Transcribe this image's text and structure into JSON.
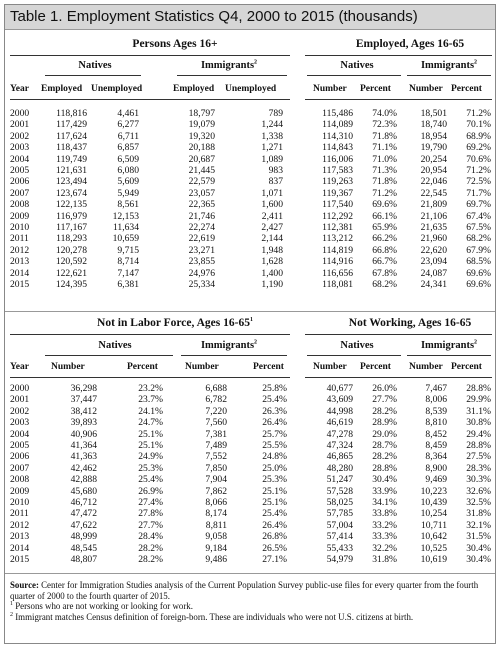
{
  "title": "Table 1. Employment Statistics Q4, 2000 to 2015 (thousands)",
  "top_left": {
    "section": "Persons Ages 16+",
    "natives": "Natives",
    "immigrants": "Immigrants",
    "immigrants_note": "2",
    "year": "Year",
    "cols": [
      "Employed",
      "Unemployed",
      "Employed",
      "Unemployed"
    ],
    "rows": [
      [
        "2000",
        "118,816",
        "4,461",
        "18,797",
        "789"
      ],
      [
        "2001",
        "117,429",
        "6,277",
        "19,079",
        "1,244"
      ],
      [
        "2002",
        "117,624",
        "6,711",
        "19,320",
        "1,338"
      ],
      [
        "2003",
        "118,437",
        "6,857",
        "20,188",
        "1,271"
      ],
      [
        "2004",
        "119,749",
        "6,509",
        "20,687",
        "1,089"
      ],
      [
        "2005",
        "121,631",
        "6,080",
        "21,445",
        "983"
      ],
      [
        "2006",
        "123,494",
        "5,609",
        "22,579",
        "837"
      ],
      [
        "2007",
        "123,674",
        "5,949",
        "23,057",
        "1,071"
      ],
      [
        "2008",
        "122,135",
        "8,561",
        "22,365",
        "1,600"
      ],
      [
        "2009",
        "116,979",
        "12,153",
        "21,746",
        "2,411"
      ],
      [
        "2010",
        "117,167",
        "11,634",
        "22,274",
        "2,427"
      ],
      [
        "2011",
        "118,293",
        "10,659",
        "22,619",
        "2,144"
      ],
      [
        "2012",
        "120,278",
        "9,715",
        "23,271",
        "1,948"
      ],
      [
        "2013",
        "120,592",
        "8,714",
        "23,855",
        "1,628"
      ],
      [
        "2014",
        "122,621",
        "7,147",
        "24,976",
        "1,400"
      ],
      [
        "2015",
        "124,395",
        "6,381",
        "25,334",
        "1,190"
      ]
    ]
  },
  "top_right": {
    "section": "Employed, Ages 16-65",
    "natives": "Natives",
    "immigrants": "Immigrants",
    "immigrants_note": "2",
    "cols": [
      "Number",
      "Percent",
      "Number",
      "Percent"
    ],
    "rows": [
      [
        "115,486",
        "74.0%",
        "18,501",
        "71.2%"
      ],
      [
        "114,089",
        "72.3%",
        "18,740",
        "70.1%"
      ],
      [
        "114,310",
        "71.8%",
        "18,954",
        "68.9%"
      ],
      [
        "114,843",
        "71.1%",
        "19,790",
        "69.2%"
      ],
      [
        "116,006",
        "71.0%",
        "20,254",
        "70.6%"
      ],
      [
        "117,583",
        "71.3%",
        "20,954",
        "71.2%"
      ],
      [
        "119,263",
        "71.8%",
        "22,046",
        "72.5%"
      ],
      [
        "119,367",
        "71.2%",
        "22,545",
        "71.7%"
      ],
      [
        "117,540",
        "69.6%",
        "21,809",
        "69.7%"
      ],
      [
        "112,292",
        "66.1%",
        "21,106",
        "67.4%"
      ],
      [
        "112,381",
        "65.9%",
        "21,635",
        "67.5%"
      ],
      [
        "113,212",
        "66.2%",
        "21,960",
        "68.2%"
      ],
      [
        "114,819",
        "66.8%",
        "22,620",
        "67.9%"
      ],
      [
        "114,916",
        "66.7%",
        "23,094",
        "68.5%"
      ],
      [
        "116,656",
        "67.8%",
        "24,087",
        "69.6%"
      ],
      [
        "118,081",
        "68.2%",
        "24,341",
        "69.6%"
      ]
    ]
  },
  "bottom_left": {
    "section": "Not in Labor Force, Ages 16-65",
    "section_note": "1",
    "natives": "Natives",
    "immigrants": "Immigrants",
    "immigrants_note": "2",
    "year": "Year",
    "cols": [
      "Number",
      "Percent",
      "Number",
      "Percent"
    ],
    "rows": [
      [
        "2000",
        "36,298",
        "23.2%",
        "6,688",
        "25.8%"
      ],
      [
        "2001",
        "37,447",
        "23.7%",
        "6,782",
        "25.4%"
      ],
      [
        "2002",
        "38,412",
        "24.1%",
        "7,220",
        "26.3%"
      ],
      [
        "2003",
        "39,893",
        "24.7%",
        "7,560",
        "26.4%"
      ],
      [
        "2004",
        "40,906",
        "25.1%",
        "7,381",
        "25.7%"
      ],
      [
        "2005",
        "41,364",
        "25.1%",
        "7,489",
        "25.5%"
      ],
      [
        "2006",
        "41,363",
        "24.9%",
        "7,552",
        "24.8%"
      ],
      [
        "2007",
        "42,462",
        "25.3%",
        "7,850",
        "25.0%"
      ],
      [
        "2008",
        "42,888",
        "25.4%",
        "7,904",
        "25.3%"
      ],
      [
        "2009",
        "45,680",
        "26.9%",
        "7,862",
        "25.1%"
      ],
      [
        "2010",
        "46,712",
        "27.4%",
        "8,066",
        "25.1%"
      ],
      [
        "2011",
        "47,472",
        "27.8%",
        "8,174",
        "25.4%"
      ],
      [
        "2012",
        "47,622",
        "27.7%",
        "8,811",
        "26.4%"
      ],
      [
        "2013",
        "48,999",
        "28.4%",
        "9,058",
        "26.8%"
      ],
      [
        "2014",
        "48,545",
        "28.2%",
        "9,184",
        "26.5%"
      ],
      [
        "2015",
        "48,807",
        "28.2%",
        "9,486",
        "27.1%"
      ]
    ]
  },
  "bottom_right": {
    "section": "Not Working, Ages 16-65",
    "natives": "Natives",
    "immigrants": "Immigrants",
    "immigrants_note": "2",
    "cols": [
      "Number",
      "Percent",
      "Number",
      "Percent"
    ],
    "rows": [
      [
        "40,677",
        "26.0%",
        "7,467",
        "28.8%"
      ],
      [
        "43,609",
        "27.7%",
        "8,006",
        "29.9%"
      ],
      [
        "44,998",
        "28.2%",
        "8,539",
        "31.1%"
      ],
      [
        "46,619",
        "28.9%",
        "8,810",
        "30.8%"
      ],
      [
        "47,278",
        "29.0%",
        "8,452",
        "29.4%"
      ],
      [
        "47,324",
        "28.7%",
        "8,459",
        "28.8%"
      ],
      [
        "46,865",
        "28.2%",
        "8,364",
        "27.5%"
      ],
      [
        "48,280",
        "28.8%",
        "8,900",
        "28.3%"
      ],
      [
        "51,247",
        "30.4%",
        "9,469",
        "30.3%"
      ],
      [
        "57,528",
        "33.9%",
        "10,223",
        "32.6%"
      ],
      [
        "58,025",
        "34.1%",
        "10,439",
        "32.5%"
      ],
      [
        "57,785",
        "33.8%",
        "10,254",
        "31.8%"
      ],
      [
        "57,004",
        "33.2%",
        "10,711",
        "32.1%"
      ],
      [
        "57,414",
        "33.3%",
        "10,642",
        "31.5%"
      ],
      [
        "55,433",
        "32.2%",
        "10,525",
        "30.4%"
      ],
      [
        "54,979",
        "31.8%",
        "10,619",
        "30.4%"
      ]
    ]
  },
  "source": {
    "label": "Source:",
    "text": "Center for Immigration Studies analysis of the Current Population Survey public-use files for every quarter from the fourth quarter of 2000 to the fourth quarter of 2015.",
    "note1_mark": "1",
    "note1": "Persons who are not working or looking for work.",
    "note2_mark": "2",
    "note2": "Immigrant matches Census definition of foreign-born. These are individuals who were not U.S. citizens at birth."
  }
}
